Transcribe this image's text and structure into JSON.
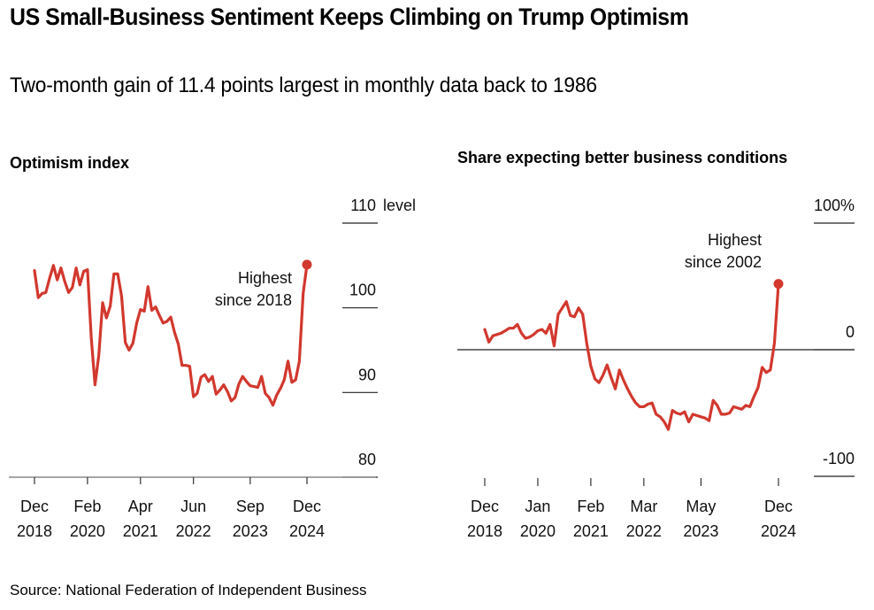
{
  "header": {
    "title": "US Small-Business Sentiment Keeps Climbing on Trump Optimism",
    "subtitle": "Two-month gain of 11.4 points largest in monthly data back to 1986"
  },
  "footer": {
    "source": "Source: National Federation of Independent Business"
  },
  "colors": {
    "line": "#d2382e",
    "axis": "#222222",
    "text": "#111111"
  },
  "chart_data": [
    {
      "type": "line",
      "title": "Optimism index",
      "ylabel": "level",
      "ylim": [
        80,
        110
      ],
      "yticks": [
        {
          "value": 110,
          "label": "110"
        },
        {
          "value": 100,
          "label": "100"
        },
        {
          "value": 90,
          "label": "90"
        },
        {
          "value": 80,
          "label": "80"
        }
      ],
      "yunit_label": "level",
      "xticks": [
        {
          "index": 0,
          "line1": "Dec",
          "line2": "2018"
        },
        {
          "index": 14,
          "line1": "Feb",
          "line2": "2020"
        },
        {
          "index": 28,
          "line1": "Apr",
          "line2": "2021"
        },
        {
          "index": 42,
          "line1": "Jun",
          "line2": "2022"
        },
        {
          "index": 57,
          "line1": "Sep",
          "line2": "2023"
        },
        {
          "index": 72,
          "line1": "Dec",
          "line2": "2024"
        }
      ],
      "x_start": "Dec 2018",
      "x_end": "Dec 2024",
      "frequency": "monthly",
      "values": [
        104.4,
        101.2,
        101.7,
        101.8,
        103.5,
        105.0,
        103.3,
        104.7,
        103.1,
        101.8,
        102.4,
        104.7,
        102.7,
        104.3,
        104.5,
        96.4,
        90.9,
        94.4,
        100.6,
        98.8,
        100.2,
        104.0,
        104.0,
        101.4,
        95.9,
        95.0,
        95.8,
        98.2,
        99.8,
        99.6,
        102.5,
        99.7,
        100.1,
        99.1,
        98.2,
        98.4,
        98.9,
        97.1,
        95.7,
        93.2,
        93.2,
        93.1,
        89.5,
        89.9,
        91.8,
        92.1,
        91.3,
        91.9,
        89.8,
        90.3,
        90.9,
        90.1,
        89.0,
        89.4,
        91.0,
        91.9,
        91.3,
        90.8,
        90.7,
        90.6,
        91.9,
        89.9,
        89.4,
        88.5,
        89.7,
        90.5,
        91.5,
        93.7,
        91.2,
        91.5,
        93.7,
        101.7,
        105.1
      ],
      "annotation": {
        "line1": "Highest",
        "line2": "since 2018"
      },
      "grid": false
    },
    {
      "type": "line",
      "title": "Share expecting better business conditions",
      "ylim": [
        -100,
        100
      ],
      "yticks": [
        {
          "value": 100,
          "label": "100%"
        },
        {
          "value": 0,
          "label": "0"
        },
        {
          "value": -100,
          "label": "-100"
        }
      ],
      "xticks": [
        {
          "index": 0,
          "line1": "Dec",
          "line2": "2018"
        },
        {
          "index": 13,
          "line1": "Jan",
          "line2": "2020"
        },
        {
          "index": 26,
          "line1": "Feb",
          "line2": "2021"
        },
        {
          "index": 39,
          "line1": "Mar",
          "line2": "2022"
        },
        {
          "index": 53,
          "line1": "May",
          "line2": "2023"
        },
        {
          "index": 72,
          "line1": "Dec",
          "line2": "2024"
        }
      ],
      "x_start": "Dec 2018",
      "x_end": "Dec 2024",
      "frequency": "monthly",
      "values": [
        16,
        6,
        11,
        12,
        13,
        15,
        17,
        17,
        20,
        13,
        9,
        10,
        12,
        15,
        16,
        13,
        20,
        3,
        28,
        33,
        38,
        27,
        26,
        33,
        28,
        5,
        -13,
        -23,
        -26,
        -20,
        -12,
        -22,
        -31,
        -16,
        -24,
        -31,
        -37,
        -42,
        -45,
        -45,
        -43,
        -42,
        -51,
        -53,
        -57,
        -63,
        -48,
        -50,
        -51,
        -49,
        -57,
        -51,
        -52,
        -53,
        -54,
        -56,
        -40,
        -44,
        -51,
        -51,
        -50,
        -45,
        -46,
        -47,
        -44,
        -45,
        -37,
        -30,
        -14,
        -18,
        -16,
        5,
        52
      ],
      "annotation": {
        "line1": "Highest",
        "line2": "since 2002"
      },
      "zero_line": true,
      "grid": false
    }
  ]
}
